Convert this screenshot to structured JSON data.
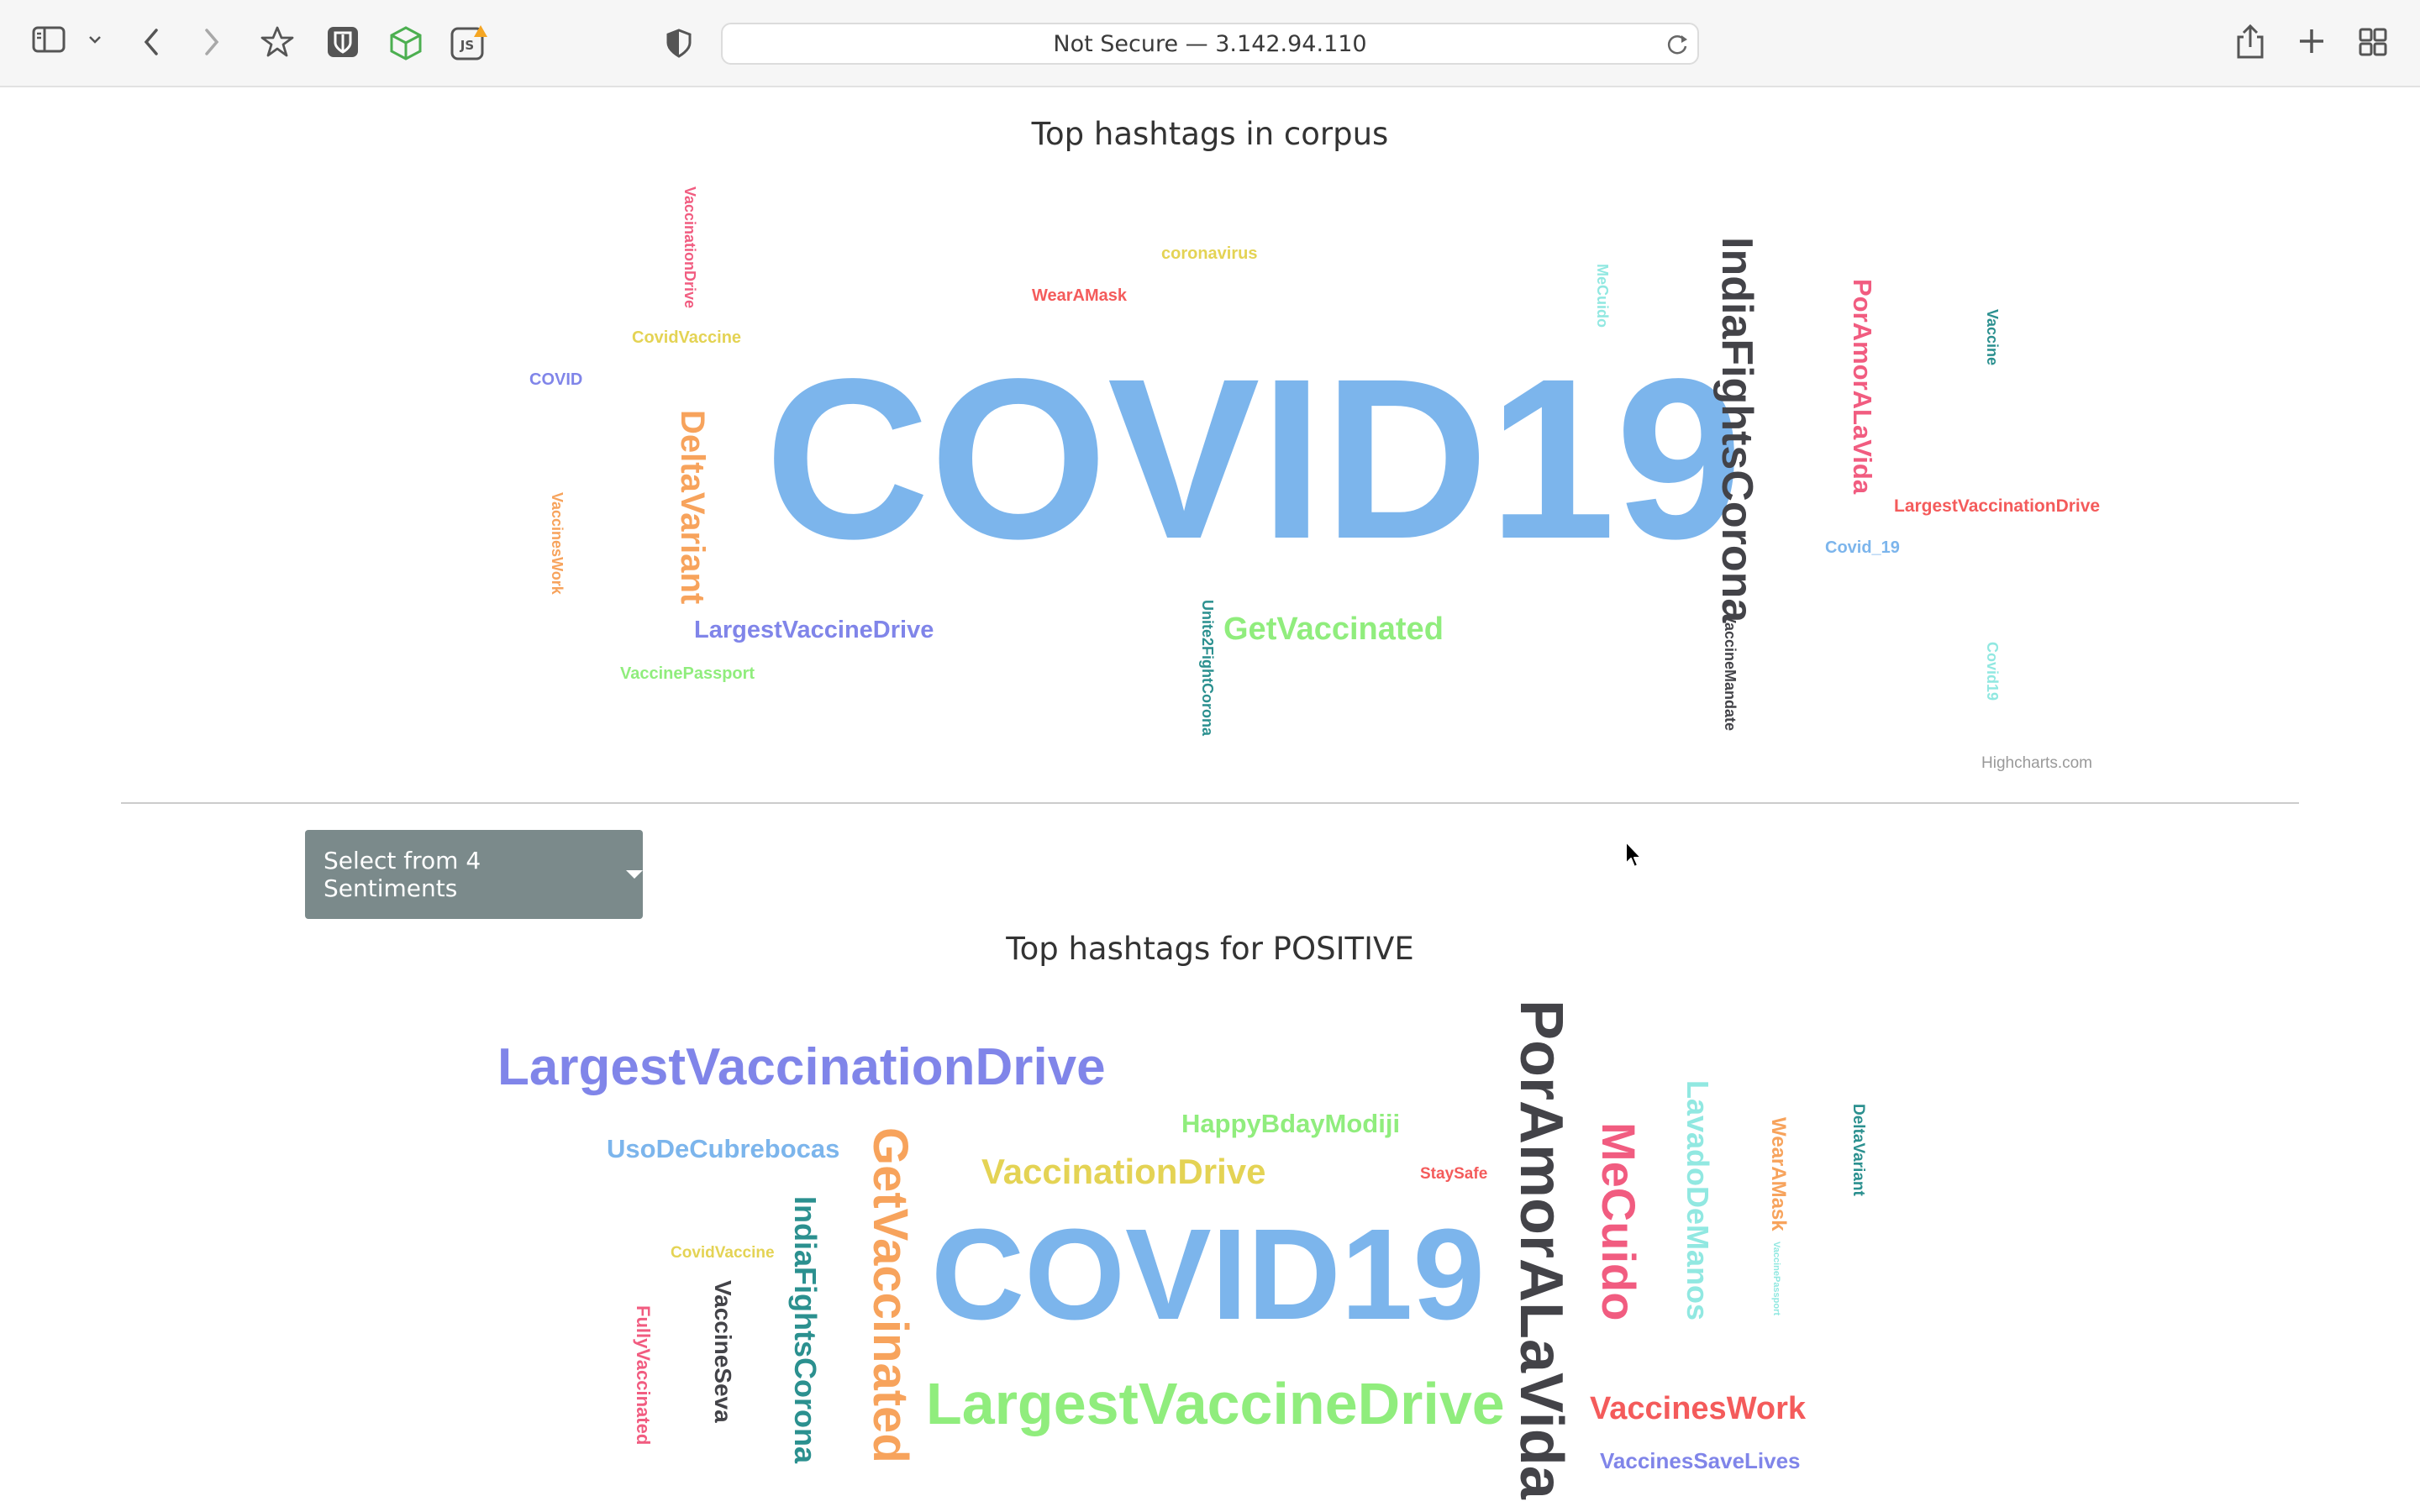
{
  "browser": {
    "address": "Not Secure — 3.142.94.110",
    "icons": [
      "sidebar-icon",
      "chevron-down-icon",
      "back-icon",
      "forward-icon",
      "bookmark-star-icon",
      "bitwarden-shield-icon",
      "cube-extension-icon",
      "js-extension-icon",
      "privacy-shield-icon",
      "reload-icon",
      "share-icon",
      "new-tab-icon",
      "tab-overview-icon"
    ],
    "js_ext_label": "JS"
  },
  "corpus_cloud": {
    "title": "Top hashtags in corpus",
    "credits": "Highcharts.com",
    "words": [
      {
        "text": "COVID19",
        "color": "#7cb5ec"
      },
      {
        "text": "IndiaFightsCorona",
        "color": "#434348"
      },
      {
        "text": "PorAmorALaVida",
        "color": "#f15c80"
      },
      {
        "text": "DeltaVariant",
        "color": "#f7a35c"
      },
      {
        "text": "GetVaccinated",
        "color": "#90ed7d"
      },
      {
        "text": "LargestVaccineDrive",
        "color": "#8085e9"
      },
      {
        "text": "VaccinationDrive",
        "color": "#f15c80"
      },
      {
        "text": "coronavirus",
        "color": "#e4d354"
      },
      {
        "text": "WearAMask",
        "color": "#f45b5b"
      },
      {
        "text": "MeCuido",
        "color": "#91e8e1"
      },
      {
        "text": "Vaccine",
        "color": "#2b908f"
      },
      {
        "text": "CovidVaccine",
        "color": "#e4d354"
      },
      {
        "text": "COVID",
        "color": "#8085e9"
      },
      {
        "text": "VaccinesWork",
        "color": "#f7a35c"
      },
      {
        "text": "VaccinePassport",
        "color": "#90ed7d"
      },
      {
        "text": "Unite2FightCorona",
        "color": "#2b908f"
      },
      {
        "text": "VaccineMandate",
        "color": "#434348"
      },
      {
        "text": "LargestVaccinationDrive",
        "color": "#f45b5b"
      },
      {
        "text": "Covid_19",
        "color": "#7cb5ec"
      },
      {
        "text": "Covid19",
        "color": "#91e8e1"
      }
    ]
  },
  "sentiment_select": {
    "label": "Select from 4 Sentiments"
  },
  "positive_cloud": {
    "title": "Top hashtags for POSITIVE",
    "words": [
      {
        "text": "COVID19",
        "color": "#7cb5ec"
      },
      {
        "text": "PorAmorALaVida",
        "color": "#434348"
      },
      {
        "text": "LargestVaccinationDrive",
        "color": "#8085e9"
      },
      {
        "text": "LargestVaccineDrive",
        "color": "#90ed7d"
      },
      {
        "text": "GetVaccinated",
        "color": "#f7a35c"
      },
      {
        "text": "MeCuido",
        "color": "#f15c80"
      },
      {
        "text": "IndiaFightsCorona",
        "color": "#2b908f"
      },
      {
        "text": "VaccinationDrive",
        "color": "#e4d354"
      },
      {
        "text": "LavadoDeManos",
        "color": "#91e8e1"
      },
      {
        "text": "HappyBdayModiji",
        "color": "#90ed7d"
      },
      {
        "text": "UsoDeCubrebocas",
        "color": "#7cb5ec"
      },
      {
        "text": "VaccinesWork",
        "color": "#f45b5b"
      },
      {
        "text": "VaccineSeva",
        "color": "#434348"
      },
      {
        "text": "VaccinesSaveLives",
        "color": "#8085e9"
      },
      {
        "text": "WearAMask",
        "color": "#f7a35c"
      },
      {
        "text": "FullyVaccinated",
        "color": "#f15c80"
      },
      {
        "text": "DeltaVariant",
        "color": "#2b908f"
      },
      {
        "text": "CovidVaccine",
        "color": "#e4d354"
      },
      {
        "text": "StaySafe",
        "color": "#f45b5b"
      },
      {
        "text": "VaccinePassport",
        "color": "#91e8e1"
      }
    ]
  }
}
